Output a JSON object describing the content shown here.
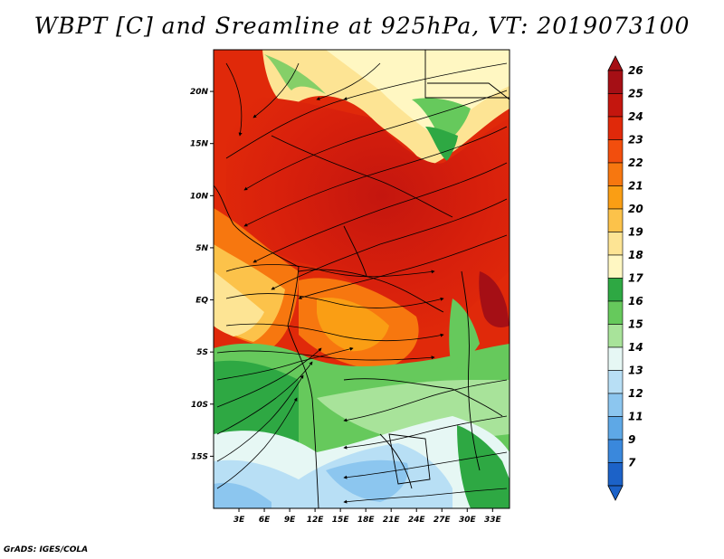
{
  "title": "WBPT [C] and Sreamline at 925hPa, VT: 2019073100",
  "footer": "GrADS: IGES/COLA",
  "map": {
    "lon_range": [
      0,
      35
    ],
    "lat_range": [
      -20,
      24
    ],
    "lat_ticks": [
      {
        "value": 20,
        "label": "20N"
      },
      {
        "value": 15,
        "label": "15N"
      },
      {
        "value": 10,
        "label": "10N"
      },
      {
        "value": 5,
        "label": "5N"
      },
      {
        "value": 0,
        "label": "EQ"
      },
      {
        "value": -5,
        "label": "5S"
      },
      {
        "value": -10,
        "label": "10S"
      },
      {
        "value": -15,
        "label": "15S"
      }
    ],
    "lon_ticks": [
      {
        "value": 3,
        "label": "3E"
      },
      {
        "value": 6,
        "label": "6E"
      },
      {
        "value": 9,
        "label": "9E"
      },
      {
        "value": 12,
        "label": "12E"
      },
      {
        "value": 15,
        "label": "15E"
      },
      {
        "value": 18,
        "label": "18E"
      },
      {
        "value": 21,
        "label": "21E"
      },
      {
        "value": 24,
        "label": "24E"
      },
      {
        "value": 27,
        "label": "27E"
      },
      {
        "value": 30,
        "label": "30E"
      },
      {
        "value": 33,
        "label": "33E"
      }
    ]
  },
  "colorbar": {
    "levels": [
      {
        "label": "26",
        "color": "#a50f15"
      },
      {
        "label": "25",
        "color": "#c4160e"
      },
      {
        "label": "24",
        "color": "#e0290a"
      },
      {
        "label": "23",
        "color": "#f24e0d"
      },
      {
        "label": "22",
        "color": "#f7770f"
      },
      {
        "label": "21",
        "color": "#fa9e14"
      },
      {
        "label": "20",
        "color": "#fcc24a"
      },
      {
        "label": "19",
        "color": "#fde494"
      },
      {
        "label": "18",
        "color": "#fff7c2"
      },
      {
        "label": "17",
        "color": "#2ea843"
      },
      {
        "label": "16",
        "color": "#66c95c"
      },
      {
        "label": "15",
        "color": "#a8e39a"
      },
      {
        "label": "14",
        "color": "#e6f7f4"
      },
      {
        "label": "13",
        "color": "#b8dff5"
      },
      {
        "label": "12",
        "color": "#8cc6ef"
      },
      {
        "label": "11",
        "color": "#5ea8e6"
      },
      {
        "label": "9",
        "color": "#3a88dc"
      },
      {
        "label": "7",
        "color": "#1c62c8"
      }
    ]
  }
}
